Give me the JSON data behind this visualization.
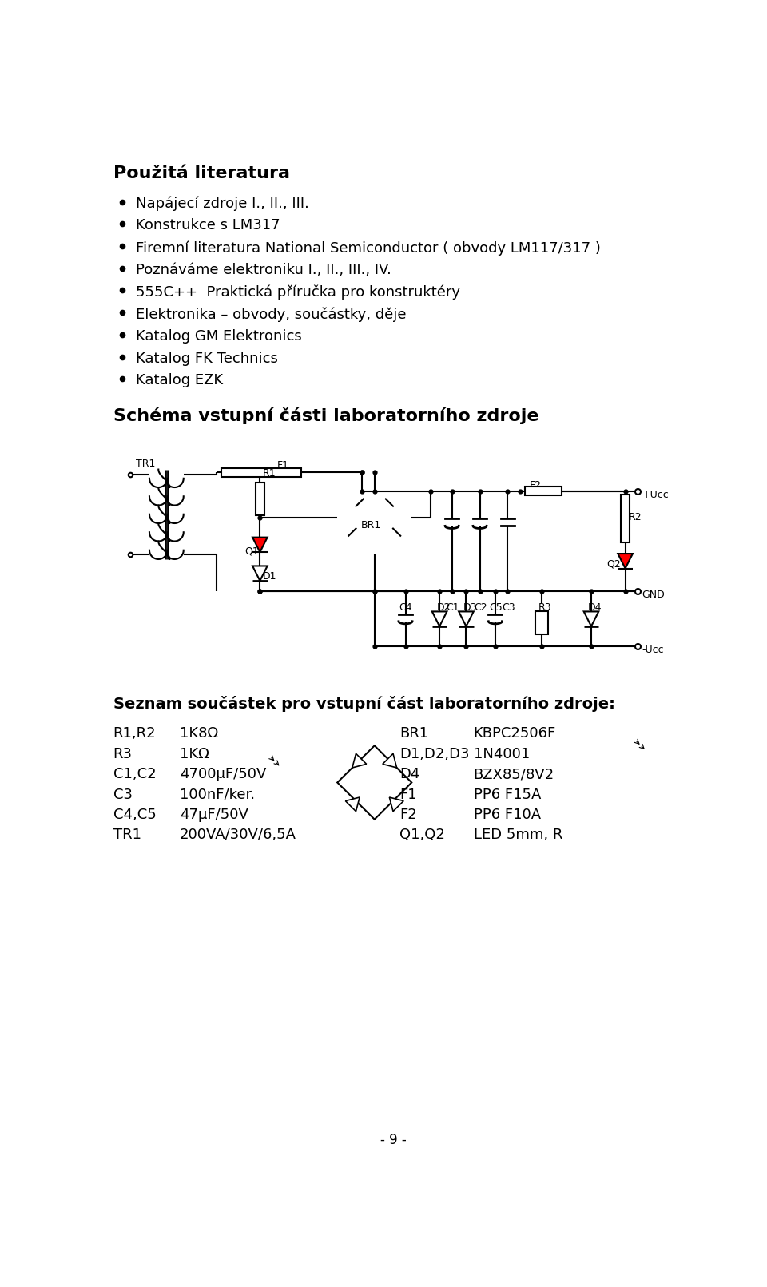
{
  "title": "Použitá literatura",
  "bullet_items": [
    "Napájecí zdroje I., II., III.",
    "Konstrukce s LM317",
    "Firemní literatura National Semiconductor ( obvody LM117/317 )",
    "Poznáváme elektroniku I., II., III., IV.",
    "555C++  Praktická příručka pro konstruktéry",
    "Elektronika – obvody, součástky, děje",
    "Katalog GM Elektronics",
    "Katalog FK Technics",
    "Katalog EZK"
  ],
  "schema_title": "Schéma vstupní části laboratorního zdroje",
  "components_title": "Seznam součástek pro vstupní část laboratorního zdroje:",
  "components": [
    [
      "R1,R2",
      "1K8Ω",
      "BR1",
      "KBPC2506F"
    ],
    [
      "R3",
      "1KΩ",
      "D1,D2,D3",
      "1N4001"
    ],
    [
      "C1,C2",
      "4700μF/50V",
      "D4",
      "BZX85/8V2"
    ],
    [
      "C3",
      "100nF/ker.",
      "F1",
      "PP6 F15A"
    ],
    [
      "C4,C5",
      "47μF/50V",
      "F2",
      "PP6 F10A"
    ],
    [
      "TR1",
      "200VA/30V/6,5A",
      "Q1,Q2",
      "LED 5mm, R"
    ]
  ],
  "page_number": "- 9 -",
  "bg_color": "#ffffff",
  "text_color": "#000000",
  "title_fontsize": 16,
  "body_fontsize": 13,
  "schema_title_fontsize": 16,
  "components_title_fontsize": 14
}
